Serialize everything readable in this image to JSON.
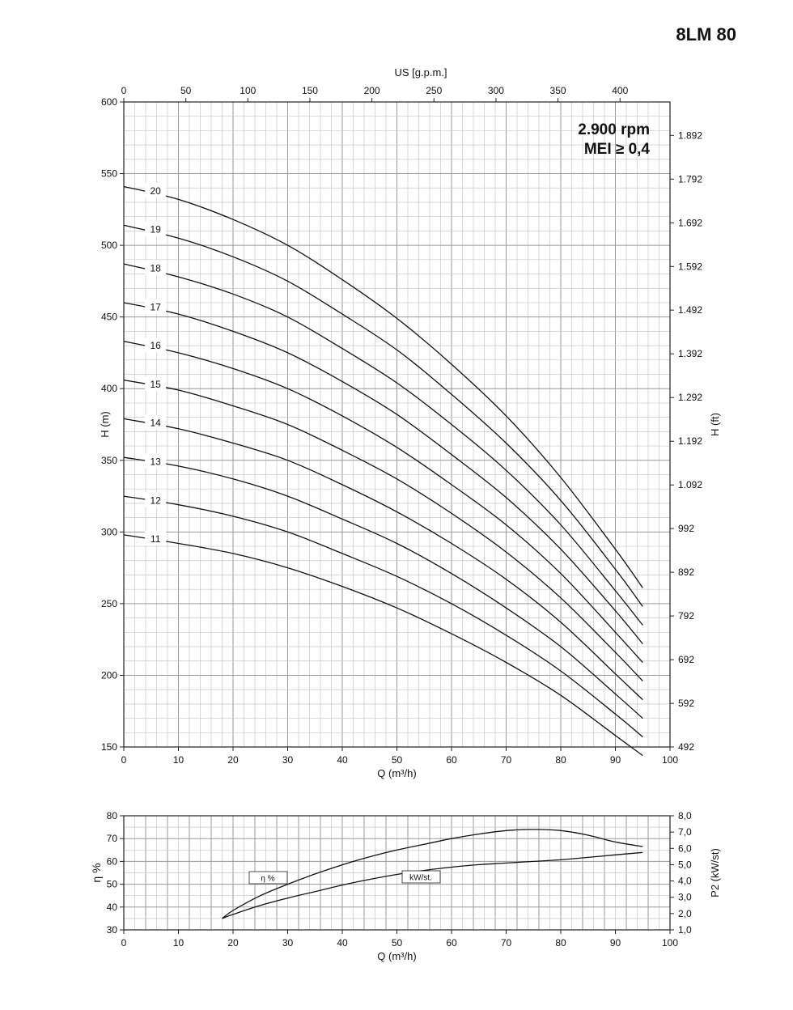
{
  "page": {
    "model": "8LM 80"
  },
  "chart_data": [
    {
      "type": "line",
      "title": "",
      "annotations": [
        "2.900 rpm",
        "MEI ≥ 0,4"
      ],
      "xlabel": "Q (m³/h)",
      "ylabel": "H (m)",
      "x2label": "US [g.p.m.]",
      "y2label": "H (ft)",
      "xlim": [
        0,
        100
      ],
      "ylim": [
        150,
        600
      ],
      "x_ticks": [
        0,
        10,
        20,
        30,
        40,
        50,
        60,
        70,
        80,
        90,
        100
      ],
      "y_ticks": [
        150,
        200,
        250,
        300,
        350,
        400,
        450,
        500,
        550,
        600
      ],
      "x2_ticks": [
        {
          "label": "0",
          "q": 0
        },
        {
          "label": "50",
          "q": 11.36
        },
        {
          "label": "100",
          "q": 22.71
        },
        {
          "label": "150",
          "q": 34.07
        },
        {
          "label": "200",
          "q": 45.42
        },
        {
          "label": "250",
          "q": 56.78
        },
        {
          "label": "300",
          "q": 68.14
        },
        {
          "label": "350",
          "q": 79.49
        },
        {
          "label": "400",
          "q": 90.85
        }
      ],
      "y2_ticks": [
        {
          "label": "1.892",
          "h": 576.7
        },
        {
          "label": "1.792",
          "h": 546.2
        },
        {
          "label": "1.692",
          "h": 515.7
        },
        {
          "label": "1.592",
          "h": 485.2
        },
        {
          "label": "1.492",
          "h": 454.8
        },
        {
          "label": "1.392",
          "h": 424.3
        },
        {
          "label": "1.292",
          "h": 393.8
        },
        {
          "label": "1.192",
          "h": 363.3
        },
        {
          "label": "1.092",
          "h": 332.8
        },
        {
          "label": "992",
          "h": 302.4
        },
        {
          "label": "892",
          "h": 271.9
        },
        {
          "label": "792",
          "h": 241.4
        },
        {
          "label": "692",
          "h": 210.9
        },
        {
          "label": "592",
          "h": 180.4
        },
        {
          "label": "492",
          "h": 150
        }
      ],
      "grid": true,
      "x": [
        0,
        10,
        20,
        30,
        40,
        50,
        60,
        70,
        80,
        90,
        95
      ],
      "series": [
        {
          "name": "20",
          "values": [
            541,
            532,
            518,
            500,
            476,
            449,
            417,
            381,
            338,
            288,
            261
          ]
        },
        {
          "name": "19",
          "values": [
            514,
            505,
            492,
            475,
            452,
            427,
            396,
            362,
            322,
            274,
            248
          ]
        },
        {
          "name": "18",
          "values": [
            487,
            478,
            466,
            450,
            428,
            404,
            375,
            343,
            305,
            259,
            235
          ]
        },
        {
          "name": "17",
          "values": [
            460,
            452,
            440,
            425,
            405,
            382,
            354,
            324,
            288,
            245,
            222
          ]
        },
        {
          "name": "16",
          "values": [
            433,
            425,
            414,
            400,
            381,
            359,
            333,
            305,
            271,
            230,
            209
          ]
        },
        {
          "name": "15",
          "values": [
            406,
            399,
            388,
            375,
            357,
            337,
            313,
            286,
            254,
            216,
            196
          ]
        },
        {
          "name": "14",
          "values": [
            379,
            372,
            362,
            350,
            333,
            314,
            292,
            267,
            237,
            201,
            183
          ]
        },
        {
          "name": "13",
          "values": [
            352,
            346,
            337,
            325,
            309,
            292,
            271,
            247,
            220,
            187,
            170
          ]
        },
        {
          "name": "12",
          "values": [
            325,
            319,
            311,
            300,
            285,
            269,
            250,
            228,
            203,
            173,
            157
          ]
        },
        {
          "name": "11",
          "values": [
            298,
            292,
            285,
            275,
            262,
            247,
            229,
            209,
            186,
            158,
            144
          ]
        }
      ]
    },
    {
      "type": "line",
      "xlabel": "Q (m³/h)",
      "ylabel": "η %",
      "y2label": "P2 (kW/st)",
      "xlim": [
        0,
        100
      ],
      "ylim": [
        30,
        80
      ],
      "y2lim": [
        1.0,
        8.0
      ],
      "x_ticks": [
        0,
        10,
        20,
        30,
        40,
        50,
        60,
        70,
        80,
        90,
        100
      ],
      "y_ticks": [
        30,
        40,
        50,
        60,
        70,
        80
      ],
      "y2_ticks": [
        "1,0",
        "2,0",
        "3,0",
        "4,0",
        "5,0",
        "6,0",
        "7,0",
        "8,0"
      ],
      "grid": true,
      "series": [
        {
          "name": "η %",
          "axis": "left",
          "x": [
            18,
            20,
            25,
            30,
            35,
            40,
            45,
            50,
            55,
            60,
            65,
            70,
            75,
            80,
            85,
            90,
            95
          ],
          "values": [
            35,
            38.5,
            45,
            50,
            54.5,
            58.5,
            62,
            65,
            67.5,
            70,
            72,
            73.5,
            74,
            73.5,
            71.5,
            68.5,
            66.5
          ]
        },
        {
          "name": "kW/st.",
          "axis": "right",
          "x": [
            18,
            20,
            25,
            30,
            35,
            40,
            45,
            50,
            55,
            60,
            65,
            70,
            75,
            80,
            85,
            90,
            95
          ],
          "values": [
            1.7,
            1.95,
            2.5,
            2.95,
            3.35,
            3.75,
            4.1,
            4.4,
            4.65,
            4.85,
            5.0,
            5.1,
            5.2,
            5.3,
            5.45,
            5.6,
            5.75
          ]
        }
      ]
    }
  ]
}
